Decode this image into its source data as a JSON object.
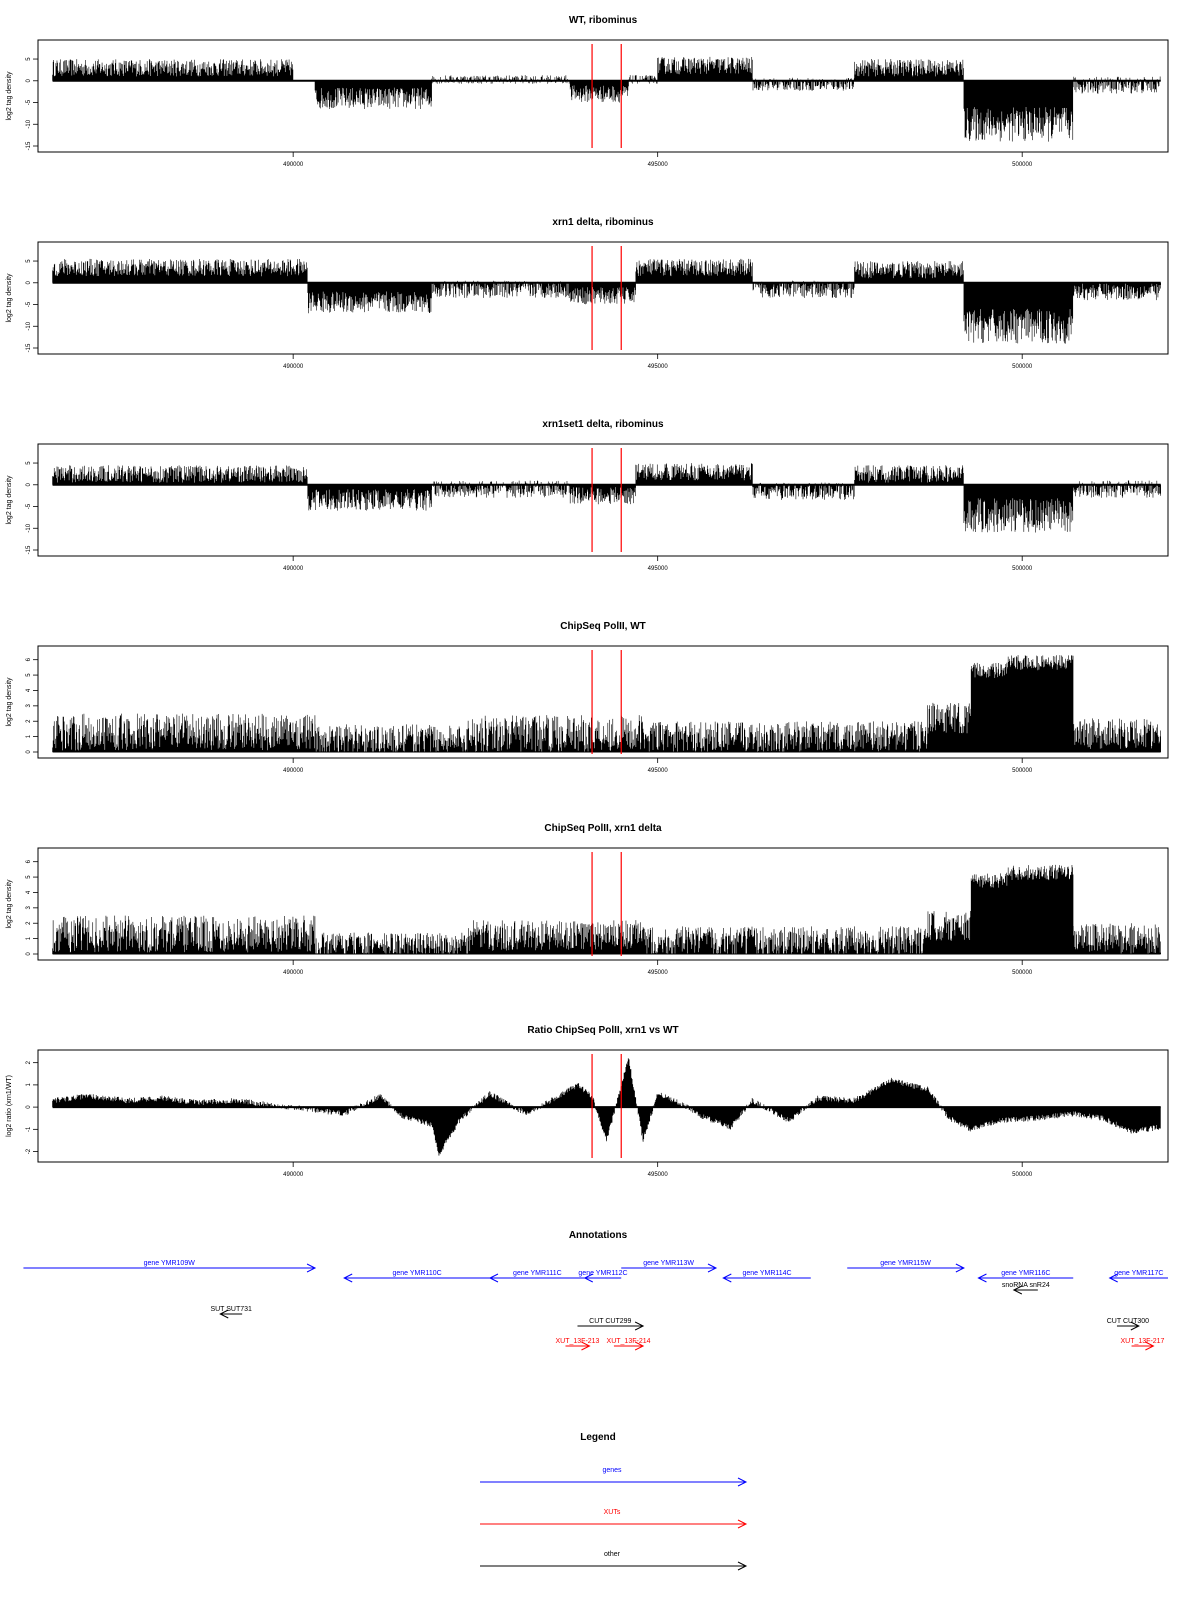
{
  "chart_data": [
    {
      "type": "area",
      "title": "WT, ribominus",
      "ylabel": "log2 tag density",
      "ylim": [
        -15,
        8
      ],
      "yticks": [
        5,
        0,
        -5,
        -10,
        -15
      ],
      "xlim": [
        486500,
        502000
      ],
      "xticks": [
        490000,
        495000,
        500000
      ],
      "marker_lines": [
        494100,
        494500
      ],
      "segments": [
        {
          "x0": 486700,
          "x1": 490000,
          "level": 3,
          "noise": 2,
          "sign": 1
        },
        {
          "x0": 490300,
          "x1": 491900,
          "level": -4,
          "noise": 2.5,
          "sign": -1
        },
        {
          "x0": 491900,
          "x1": 493800,
          "level": 0.3,
          "noise": 1,
          "sign": 0
        },
        {
          "x0": 493800,
          "x1": 494600,
          "level": -3,
          "noise": 2,
          "sign": -1
        },
        {
          "x0": 494600,
          "x1": 495000,
          "level": 0.3,
          "noise": 1,
          "sign": 0
        },
        {
          "x0": 495000,
          "x1": 496300,
          "level": 3.5,
          "noise": 2,
          "sign": 1
        },
        {
          "x0": 496300,
          "x1": 497700,
          "level": -0.8,
          "noise": 1.5,
          "sign": 0
        },
        {
          "x0": 497700,
          "x1": 499200,
          "level": 3,
          "noise": 2,
          "sign": 1
        },
        {
          "x0": 499200,
          "x1": 500700,
          "level": -10,
          "noise": 4,
          "sign": -1
        },
        {
          "x0": 500700,
          "x1": 501900,
          "level": -1,
          "noise": 2,
          "sign": 0
        }
      ]
    },
    {
      "type": "area",
      "title": "xrn1 delta, ribominus",
      "ylabel": "log2 tag density",
      "ylim": [
        -15,
        8
      ],
      "yticks": [
        5,
        0,
        -5,
        -10,
        -15
      ],
      "xlim": [
        486500,
        502000
      ],
      "xticks": [
        490000,
        495000,
        500000
      ],
      "marker_lines": [
        494100,
        494500
      ],
      "segments": [
        {
          "x0": 486700,
          "x1": 490200,
          "level": 3.5,
          "noise": 2,
          "sign": 1
        },
        {
          "x0": 490200,
          "x1": 491900,
          "level": -4.5,
          "noise": 2.5,
          "sign": -1
        },
        {
          "x0": 491900,
          "x1": 493800,
          "level": -1.5,
          "noise": 2,
          "sign": 0
        },
        {
          "x0": 493800,
          "x1": 494700,
          "level": -3,
          "noise": 2,
          "sign": -1
        },
        {
          "x0": 494700,
          "x1": 496300,
          "level": 3.5,
          "noise": 2,
          "sign": 1
        },
        {
          "x0": 496300,
          "x1": 497700,
          "level": -1.5,
          "noise": 2,
          "sign": 0
        },
        {
          "x0": 497700,
          "x1": 499200,
          "level": 3,
          "noise": 2,
          "sign": 1
        },
        {
          "x0": 499200,
          "x1": 500700,
          "level": -10,
          "noise": 4,
          "sign": -1
        },
        {
          "x0": 500700,
          "x1": 501900,
          "level": -2,
          "noise": 2,
          "sign": 0
        }
      ]
    },
    {
      "type": "area",
      "title": "xrn1set1 delta, ribominus",
      "ylabel": "log2 tag density",
      "ylim": [
        -15,
        8
      ],
      "yticks": [
        5,
        0,
        -5,
        -10,
        -15
      ],
      "xlim": [
        486500,
        502000
      ],
      "xticks": [
        490000,
        495000,
        500000
      ],
      "marker_lines": [
        494100,
        494500
      ],
      "segments": [
        {
          "x0": 486700,
          "x1": 490200,
          "level": 2.5,
          "noise": 2,
          "sign": 1
        },
        {
          "x0": 490200,
          "x1": 491900,
          "level": -3.5,
          "noise": 2.5,
          "sign": -1
        },
        {
          "x0": 491900,
          "x1": 493800,
          "level": -1,
          "noise": 2,
          "sign": 0
        },
        {
          "x0": 493800,
          "x1": 494700,
          "level": -2.5,
          "noise": 2,
          "sign": -1
        },
        {
          "x0": 494700,
          "x1": 496300,
          "level": 3,
          "noise": 2,
          "sign": 1
        },
        {
          "x0": 496300,
          "x1": 497700,
          "level": -1.5,
          "noise": 2,
          "sign": 0
        },
        {
          "x0": 497700,
          "x1": 499200,
          "level": 2.5,
          "noise": 2,
          "sign": 1
        },
        {
          "x0": 499200,
          "x1": 500700,
          "level": -7,
          "noise": 4,
          "sign": -1
        },
        {
          "x0": 500700,
          "x1": 501900,
          "level": -1,
          "noise": 2,
          "sign": 0
        }
      ]
    },
    {
      "type": "area",
      "title": "ChipSeq PolII, WT",
      "ylabel": "log2 tag density",
      "ylim": [
        0,
        6.5
      ],
      "yticks": [
        0,
        1,
        2,
        3,
        4,
        5,
        6
      ],
      "xlim": [
        486500,
        502000
      ],
      "xticks": [
        490000,
        495000,
        500000
      ],
      "marker_lines": [
        494100,
        494500
      ],
      "segments": [
        {
          "x0": 486700,
          "x1": 490300,
          "level": 1.3,
          "noise": 1.2,
          "sign": 1
        },
        {
          "x0": 490300,
          "x1": 492400,
          "level": 0.8,
          "noise": 1,
          "sign": 1
        },
        {
          "x0": 492400,
          "x1": 494800,
          "level": 1.2,
          "noise": 1.2,
          "sign": 1
        },
        {
          "x0": 494800,
          "x1": 498700,
          "level": 1,
          "noise": 1,
          "sign": 1
        },
        {
          "x0": 498700,
          "x1": 499300,
          "level": 2.2,
          "noise": 1,
          "sign": 1
        },
        {
          "x0": 499300,
          "x1": 499800,
          "level": 5.3,
          "noise": 0.5,
          "sign": 1
        },
        {
          "x0": 499800,
          "x1": 500700,
          "level": 5.8,
          "noise": 0.5,
          "sign": 1
        },
        {
          "x0": 500700,
          "x1": 501900,
          "level": 1.2,
          "noise": 1,
          "sign": 1
        }
      ]
    },
    {
      "type": "area",
      "title": "ChipSeq PolII, xrn1 delta",
      "ylabel": "log2 tag density",
      "ylim": [
        0,
        6.5
      ],
      "yticks": [
        0,
        1,
        2,
        3,
        4,
        5,
        6
      ],
      "xlim": [
        486500,
        502000
      ],
      "xticks": [
        490000,
        495000,
        500000
      ],
      "marker_lines": [
        494100,
        494500
      ],
      "segments": [
        {
          "x0": 486700,
          "x1": 490300,
          "level": 1.3,
          "noise": 1.2,
          "sign": 1
        },
        {
          "x0": 490300,
          "x1": 492400,
          "level": 0.6,
          "noise": 0.8,
          "sign": 1
        },
        {
          "x0": 492400,
          "x1": 494800,
          "level": 1.2,
          "noise": 1,
          "sign": 1
        },
        {
          "x0": 494800,
          "x1": 498700,
          "level": 0.8,
          "noise": 1,
          "sign": 1
        },
        {
          "x0": 498700,
          "x1": 499300,
          "level": 1.8,
          "noise": 1,
          "sign": 1
        },
        {
          "x0": 499300,
          "x1": 499800,
          "level": 4.8,
          "noise": 0.5,
          "sign": 1
        },
        {
          "x0": 499800,
          "x1": 500700,
          "level": 5.3,
          "noise": 0.5,
          "sign": 1
        },
        {
          "x0": 500700,
          "x1": 501900,
          "level": 1,
          "noise": 1,
          "sign": 1
        }
      ]
    },
    {
      "type": "area",
      "title": "Ratio ChipSeq PolII, xrn1 vs WT",
      "ylabel": "log2 ratio (xrn1/WT)",
      "ylim": [
        -2.2,
        2.3
      ],
      "yticks": [
        2,
        1,
        0,
        -1,
        -2
      ],
      "xlim": [
        486500,
        502000
      ],
      "xticks": [
        490000,
        495000,
        500000
      ],
      "marker_lines": [
        494100,
        494500
      ],
      "x": [
        486700,
        487200,
        487700,
        488200,
        488700,
        489200,
        489700,
        490200,
        490700,
        491200,
        491500,
        491900,
        492000,
        492300,
        492700,
        493200,
        493600,
        493900,
        494100,
        494300,
        494600,
        494800,
        495000,
        495300,
        495600,
        496000,
        496300,
        496800,
        497200,
        497700,
        498200,
        498700,
        499000,
        499300,
        499700,
        500200,
        500700,
        501100,
        501500,
        501900
      ],
      "y": [
        0.3,
        0.5,
        0.3,
        0.4,
        0.2,
        0.3,
        0.1,
        -0.1,
        -0.3,
        0.5,
        -0.4,
        -0.8,
        -2.1,
        -0.5,
        0.6,
        -0.3,
        0.4,
        1.0,
        0.5,
        -1.5,
        2.2,
        -1.5,
        0.6,
        0.2,
        -0.4,
        -0.9,
        0.3,
        -0.6,
        0.4,
        0.3,
        1.2,
        0.8,
        -0.5,
        -1.0,
        -0.6,
        -0.5,
        -0.3,
        -0.5,
        -1.1,
        -0.9
      ]
    }
  ],
  "annotations": {
    "title": "Annotations",
    "features": [
      {
        "label": "gene YMR109W",
        "x0": 486300,
        "x1": 490300,
        "row": 0,
        "dir": "right",
        "kind": "gene"
      },
      {
        "label": "gene YMR110C",
        "x0": 490700,
        "x1": 492700,
        "row": 1,
        "dir": "left",
        "kind": "gene"
      },
      {
        "label": "gene YMR111C",
        "x0": 492700,
        "x1": 494000,
        "row": 1,
        "dir": "left",
        "kind": "gene"
      },
      {
        "label": "gene YMR112C",
        "x0": 494000,
        "x1": 494500,
        "row": 1,
        "dir": "left",
        "kind": "gene"
      },
      {
        "label": "gene YMR113W",
        "x0": 494500,
        "x1": 495800,
        "row": 0,
        "dir": "right",
        "kind": "gene"
      },
      {
        "label": "gene YMR114C",
        "x0": 495900,
        "x1": 497100,
        "row": 1,
        "dir": "left",
        "kind": "gene"
      },
      {
        "label": "gene YMR115W",
        "x0": 497600,
        "x1": 499200,
        "row": 0,
        "dir": "right",
        "kind": "gene"
      },
      {
        "label": "gene YMR116C",
        "x0": 499400,
        "x1": 500700,
        "row": 1,
        "dir": "left",
        "kind": "gene"
      },
      {
        "label": "gene YMR117C",
        "x0": 501200,
        "x1": 502000,
        "row": 1,
        "dir": "left",
        "kind": "gene"
      },
      {
        "label": "snoRNA snR24",
        "x0": 500000,
        "x1": 500100,
        "row": 2,
        "dir": "left",
        "kind": "other"
      },
      {
        "label": "SUT SUT731",
        "x0": 489000,
        "x1": 489300,
        "row": 3,
        "dir": "left",
        "kind": "other"
      },
      {
        "label": "CUT CUT299",
        "x0": 493900,
        "x1": 494800,
        "row": 4,
        "dir": "right",
        "kind": "other"
      },
      {
        "label": "CUT CUT300",
        "x0": 501300,
        "x1": 501600,
        "row": 4,
        "dir": "right",
        "kind": "other"
      },
      {
        "label": "XUT_13F-213",
        "x0": 493800,
        "x1": 494000,
        "row": 5,
        "dir": "right",
        "kind": "xut"
      },
      {
        "label": "XUT_13F-214",
        "x0": 494400,
        "x1": 494800,
        "row": 5,
        "dir": "right",
        "kind": "xut"
      },
      {
        "label": "XUT_13F-217",
        "x0": 501500,
        "x1": 501800,
        "row": 5,
        "dir": "right",
        "kind": "xut"
      }
    ]
  },
  "legend": {
    "title": "Legend",
    "items": [
      {
        "label": "genes",
        "color": "#0000ff"
      },
      {
        "label": "XUTs",
        "color": "#ff0000"
      },
      {
        "label": "other",
        "color": "#000000"
      }
    ]
  },
  "colors": {
    "data": "#000000",
    "marker": "#ff0000",
    "gene": "#0000ff",
    "xut": "#ff0000",
    "other": "#000000"
  }
}
